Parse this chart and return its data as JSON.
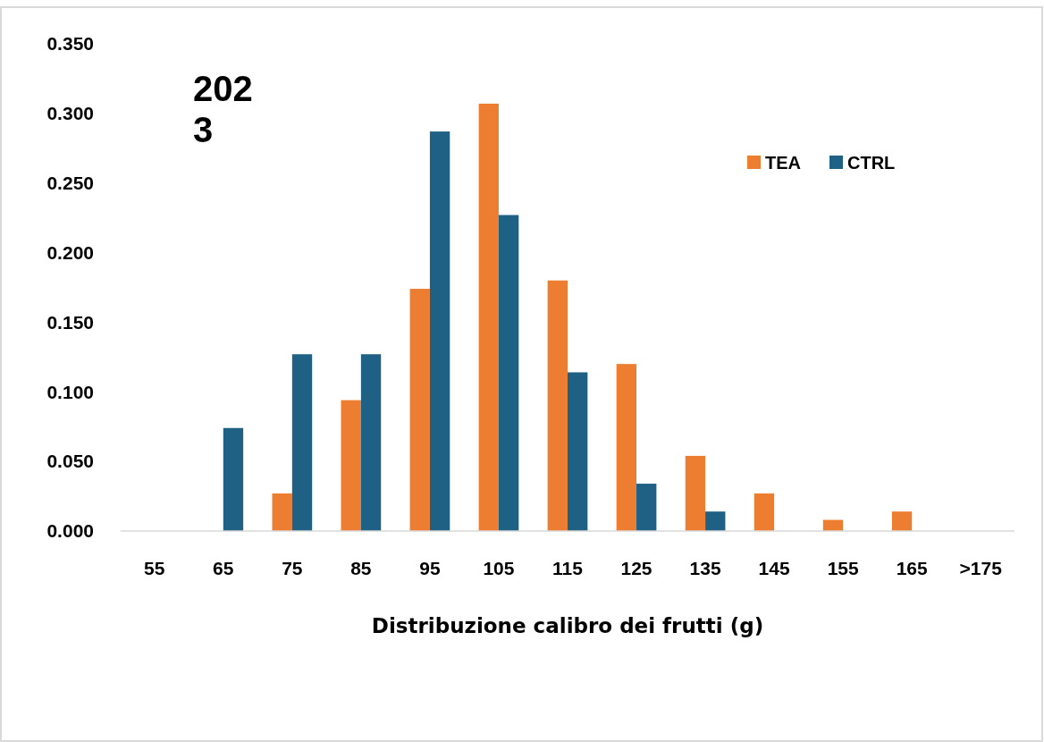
{
  "chart_data": {
    "type": "bar",
    "title": "2023",
    "xlabel": "Distribuzione calibro dei frutti (g)",
    "categories": [
      "55",
      "65",
      "75",
      "85",
      "95",
      "105",
      "115",
      "125",
      "135",
      "145",
      "155",
      "165",
      ">175"
    ],
    "series": [
      {
        "name": "TEA",
        "color": "#ed7d31",
        "values": [
          0,
          0,
          0.027,
          0.094,
          0.174,
          0.307,
          0.18,
          0.12,
          0.054,
          0.027,
          0.008,
          0.014,
          0
        ]
      },
      {
        "name": "CTRL",
        "color": "#1f6085",
        "values": [
          0,
          0.074,
          0.127,
          0.127,
          0.287,
          0.227,
          0.114,
          0.034,
          0.014,
          0,
          0,
          0,
          0
        ]
      }
    ],
    "ylim": [
      0,
      0.35
    ],
    "yticks": [
      {
        "value": 0,
        "label": "0.000"
      },
      {
        "value": 0.05,
        "label": "0.050"
      },
      {
        "value": 0.1,
        "label": "0.100"
      },
      {
        "value": 0.15,
        "label": "0.150"
      },
      {
        "value": 0.2,
        "label": "0.200"
      },
      {
        "value": 0.25,
        "label": "0.250"
      },
      {
        "value": 0.3,
        "label": "0.300"
      },
      {
        "value": 0.35,
        "label": "0.350"
      }
    ],
    "grid": false,
    "legend": "top right"
  }
}
